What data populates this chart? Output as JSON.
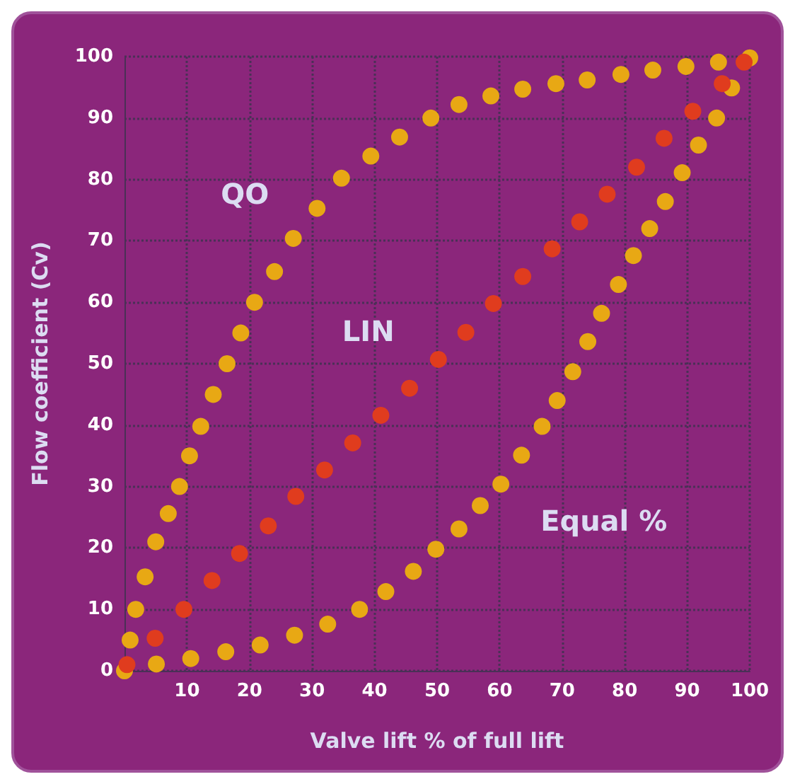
{
  "chart_data": {
    "type": "scatter",
    "xlabel": "Valve lift % of full lift",
    "ylabel": "Flow coefficient (Cv)",
    "xlim": [
      0,
      100
    ],
    "ylim": [
      0,
      100
    ],
    "xticks": [
      10,
      20,
      30,
      40,
      50,
      60,
      70,
      80,
      90,
      100
    ],
    "yticks": [
      0,
      10,
      20,
      30,
      40,
      50,
      60,
      70,
      80,
      90,
      100
    ],
    "grid": true,
    "legend": false,
    "marker": "circle",
    "series": [
      {
        "name": "QO",
        "color": "#e8a814",
        "x": [
          0,
          0.9,
          1.8,
          3.3,
          5,
          7,
          8.8,
          10.4,
          12.2,
          14.2,
          16.4,
          18.6,
          20.8,
          24,
          27,
          30.8,
          34.7,
          39.4,
          44,
          49,
          53.5,
          58.6,
          63.7,
          69,
          74,
          79.4,
          84.5,
          89.8,
          95,
          100
        ],
        "values": [
          0,
          5,
          10,
          15.3,
          21,
          25.6,
          30,
          35,
          39.8,
          45,
          50,
          55,
          60,
          65,
          70.4,
          75.3,
          80.2,
          83.8,
          86.9,
          90,
          92.2,
          93.6,
          94.7,
          95.6,
          96.2,
          97.1,
          97.8,
          98.4,
          99.1,
          99.8
        ]
      },
      {
        "name": "Equal %",
        "color": "#e8a814",
        "x": [
          5.1,
          10.6,
          16.2,
          21.7,
          27.2,
          32.5,
          37.6,
          41.8,
          46.2,
          49.8,
          53.5,
          56.9,
          60.2,
          63.5,
          66.8,
          69.2,
          71.7,
          74.1,
          76.3,
          79,
          81.4,
          84,
          86.5,
          89.2,
          91.8,
          94.7,
          97.1
        ],
        "values": [
          1.1,
          2,
          3.1,
          4.2,
          5.8,
          7.6,
          10,
          12.9,
          16.2,
          19.8,
          23.1,
          26.9,
          30.4,
          35.1,
          39.8,
          44,
          48.7,
          53.6,
          58.2,
          62.9,
          67.6,
          72,
          76.4,
          81.1,
          85.6,
          90,
          94.9
        ]
      },
      {
        "name": "LIN",
        "color": "#e03c1e",
        "x": [
          0.4,
          4.9,
          9.5,
          14,
          18.4,
          23,
          27.4,
          32,
          36.5,
          41,
          45.6,
          50.2,
          54.6,
          59,
          63.7,
          68.4,
          72.8,
          77.2,
          81.9,
          86.3,
          90.9,
          95.6,
          99.1
        ],
        "values": [
          1,
          5.3,
          10,
          14.7,
          19.1,
          23.6,
          28.4,
          32.7,
          37.1,
          41.6,
          46,
          50.7,
          55.1,
          59.8,
          64.2,
          68.7,
          73.1,
          77.6,
          82,
          86.7,
          91.1,
          95.6,
          99.1
        ]
      }
    ]
  }
}
